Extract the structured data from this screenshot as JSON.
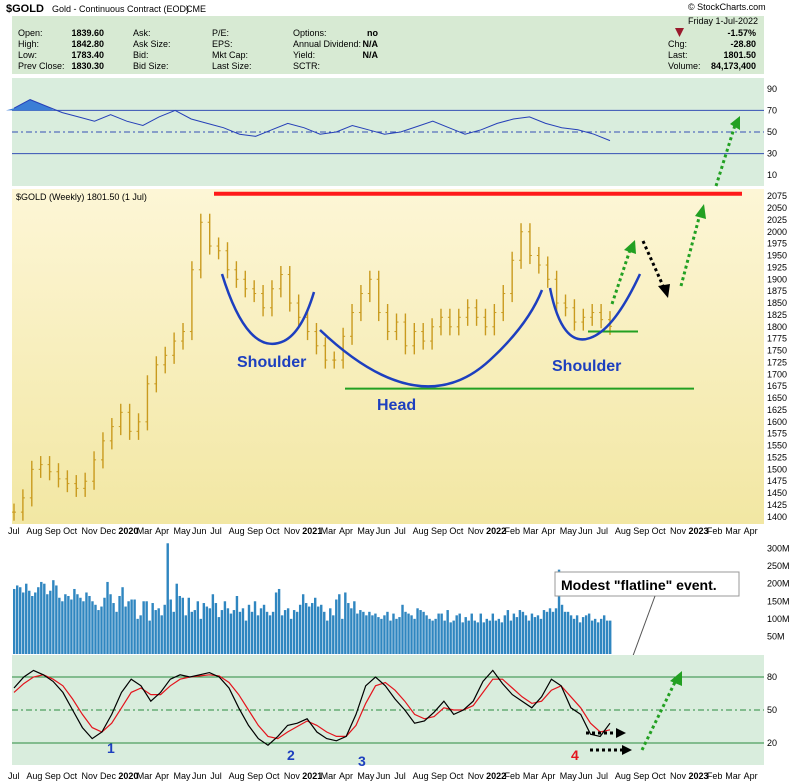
{
  "header": {
    "symbol": "$GOLD",
    "name": "Gold - Continuous Contract (EOD)",
    "exchange": "CME",
    "watermark": "© StockCharts.com",
    "date": "Friday  1-Jul-2022",
    "stats_left": [
      {
        "label": "Open:",
        "value": "1839.60"
      },
      {
        "label": "High:",
        "value": "1842.80"
      },
      {
        "label": "Low:",
        "value": "1783.40"
      },
      {
        "label": "Prev Close:",
        "value": "1830.30"
      }
    ],
    "stats_mid": [
      "Ask:",
      "Ask Size:",
      "Bid:",
      "Bid Size:"
    ],
    "stats_mid2": [
      "P/E:",
      "EPS:",
      "Mkt Cap:",
      "Last Size:"
    ],
    "stats_right": [
      {
        "label": "Options:",
        "value": "no"
      },
      {
        "label": "Annual Dividend:",
        "value": "N/A"
      },
      {
        "label": "Yield:",
        "value": "N/A"
      },
      {
        "label": "SCTR:",
        "value": ""
      }
    ],
    "quote": [
      {
        "label": "",
        "value": "-1.57%"
      },
      {
        "label": "Chg:",
        "value": "-28.80"
      },
      {
        "label": "Last:",
        "value": "1801.50"
      },
      {
        "label": "Volume:",
        "value": "84,173,400"
      }
    ],
    "down_color": "#c0102a"
  },
  "chart_data": [
    {
      "type": "line",
      "panel": "RSI",
      "ylim": [
        0,
        100
      ],
      "ticks": [
        10,
        30,
        50,
        70,
        90
      ],
      "reference_lines": [
        30,
        50,
        70
      ],
      "series": [
        {
          "values": [
            72,
            80,
            74,
            68,
            64,
            60,
            66,
            60,
            56,
            64,
            70,
            62,
            58,
            54,
            48,
            46,
            52,
            58,
            54,
            48,
            50,
            56,
            52,
            48,
            50,
            55,
            60,
            54,
            48,
            52,
            58,
            62,
            64,
            58,
            54,
            52,
            48,
            42
          ]
        }
      ],
      "fill_color": "#3b7ed6"
    },
    {
      "type": "line",
      "panel": "price",
      "title": "$GOLD (Weekly) 1801.50 (1 Jul)",
      "ylim": [
        1385,
        2090
      ],
      "ticks": [
        1400,
        1425,
        1450,
        1475,
        1500,
        1525,
        1550,
        1575,
        1600,
        1625,
        1650,
        1675,
        1700,
        1725,
        1750,
        1775,
        1800,
        1825,
        1850,
        1875,
        1900,
        1925,
        1950,
        1975,
        2000,
        2025,
        2050,
        2075
      ],
      "x_labels": [
        "Jul",
        "Aug",
        "Sep",
        "Oct",
        "Nov",
        "Dec",
        "2020",
        "Mar",
        "Apr",
        "May",
        "Jun",
        "Jul",
        "Aug",
        "Sep",
        "Oct",
        "Nov",
        "2021",
        "Mar",
        "Apr",
        "May",
        "Jun",
        "Jul",
        "Aug",
        "Sep",
        "Oct",
        "Nov",
        "2022",
        "Feb",
        "Mar",
        "Apr",
        "May",
        "Jun",
        "Jul",
        "Aug",
        "Sep",
        "Oct",
        "Nov",
        "2023",
        "Feb",
        "Mar",
        "Apr"
      ],
      "series": [
        {
          "values": [
            1410,
            1440,
            1500,
            1510,
            1495,
            1480,
            1470,
            1460,
            1475,
            1520,
            1560,
            1590,
            1620,
            1580,
            1600,
            1680,
            1720,
            1740,
            1770,
            1790,
            1920,
            2020,
            1970,
            1960,
            1920,
            1900,
            1880,
            1870,
            1840,
            1880,
            1910,
            1850,
            1820,
            1790,
            1760,
            1730,
            1730,
            1780,
            1830,
            1870,
            1900,
            1830,
            1790,
            1810,
            1760,
            1790,
            1770,
            1800,
            1820,
            1800,
            1820,
            1840,
            1820,
            1800,
            1830,
            1870,
            1940,
            2000,
            1950,
            1930,
            1900,
            1850,
            1840,
            1810,
            1820,
            1830,
            1815,
            1801
          ]
        }
      ],
      "resistance": {
        "value": 2080,
        "color": "#ff1a1a"
      },
      "neckline_head": {
        "value": 1670,
        "color": "#22a022"
      },
      "neckline_shoulder": {
        "value": 1790,
        "color": "#22a022"
      },
      "annotations": [
        "Shoulder",
        "Head",
        "Shoulder"
      ]
    },
    {
      "type": "bar",
      "panel": "volume",
      "ticks": [
        "300M",
        "250M",
        "200M",
        "150M",
        "100M",
        "50M"
      ],
      "ylim": [
        0,
        330
      ],
      "values": [
        185,
        195,
        190,
        175,
        200,
        180,
        165,
        175,
        190,
        205,
        200,
        170,
        180,
        210,
        195,
        160,
        150,
        170,
        165,
        155,
        185,
        170,
        160,
        150,
        175,
        165,
        150,
        140,
        125,
        135,
        160,
        205,
        170,
        145,
        120,
        165,
        190,
        135,
        150,
        155,
        155,
        100,
        110,
        150,
        150,
        95,
        145,
        125,
        130,
        110,
        140,
        315,
        155,
        120,
        200,
        165,
        160,
        110,
        160,
        120,
        125,
        150,
        100,
        145,
        135,
        130,
        170,
        145,
        105,
        125,
        150,
        130,
        115,
        125,
        165,
        120,
        130,
        95,
        140,
        120,
        150,
        110,
        130,
        140,
        120,
        110,
        120,
        175,
        185,
        110,
        125,
        130,
        100,
        125,
        120,
        140,
        170,
        145,
        135,
        145,
        160,
        135,
        140,
        120,
        95,
        130,
        110,
        155,
        170,
        100,
        175,
        145,
        130,
        150,
        115,
        125,
        120,
        110,
        120,
        110,
        115,
        105,
        100,
        110,
        120,
        95,
        115,
        100,
        105,
        140,
        120,
        115,
        110,
        100,
        130,
        125,
        120,
        110,
        100,
        95,
        100,
        115,
        115,
        95,
        125,
        90,
        95,
        110,
        115,
        90,
        105,
        95,
        115,
        95,
        90,
        115,
        90,
        100,
        95,
        115,
        95,
        100,
        90,
        110,
        125,
        95,
        115,
        105,
        125,
        120,
        110,
        95,
        115,
        105,
        110,
        100,
        125,
        120,
        130,
        120,
        130,
        240,
        140,
        120,
        120,
        110,
        100,
        110,
        90,
        105,
        110,
        115,
        95,
        100,
        90,
        100,
        110,
        95,
        95
      ],
      "bar_color": "#2f86c0",
      "annotation": "Modest \"flatline\" event."
    },
    {
      "type": "line",
      "panel": "stochastic",
      "ylim": [
        0,
        100
      ],
      "ticks": [
        20,
        50,
        80
      ],
      "reference_lines": [
        20,
        50,
        80
      ],
      "series": [
        {
          "values": [
            70,
            80,
            86,
            82,
            76,
            66,
            50,
            34,
            24,
            30,
            46,
            66,
            78,
            72,
            58,
            66,
            78,
            82,
            80,
            82,
            84,
            80,
            70,
            52,
            36,
            24,
            18,
            26,
            36,
            38,
            42,
            30,
            24,
            22,
            26,
            46,
            72,
            80,
            72,
            60,
            50,
            38,
            40,
            48,
            58,
            46,
            50,
            58,
            76,
            86,
            74,
            64,
            58,
            52,
            62,
            78,
            72,
            52,
            46,
            28,
            26,
            38
          ]
        },
        {
          "values": [
            66,
            74,
            80,
            82,
            78,
            72,
            60,
            46,
            34,
            30,
            38,
            52,
            66,
            70,
            64,
            64,
            72,
            78,
            80,
            81,
            82,
            81,
            75,
            64,
            50,
            36,
            26,
            24,
            30,
            35,
            40,
            36,
            30,
            26,
            26,
            36,
            56,
            72,
            75,
            68,
            58,
            46,
            42,
            44,
            52,
            50,
            50,
            54,
            66,
            78,
            78,
            70,
            62,
            56,
            58,
            68,
            72,
            62,
            52,
            38,
            30,
            32
          ]
        }
      ],
      "series_colors": [
        "#000000",
        "#e4141d"
      ],
      "markers": [
        "1",
        "2",
        "3",
        "4"
      ],
      "marker_colors": [
        "#1d3fbf",
        "#1d3fbf",
        "#1d3fbf",
        "#e4141d"
      ]
    }
  ]
}
